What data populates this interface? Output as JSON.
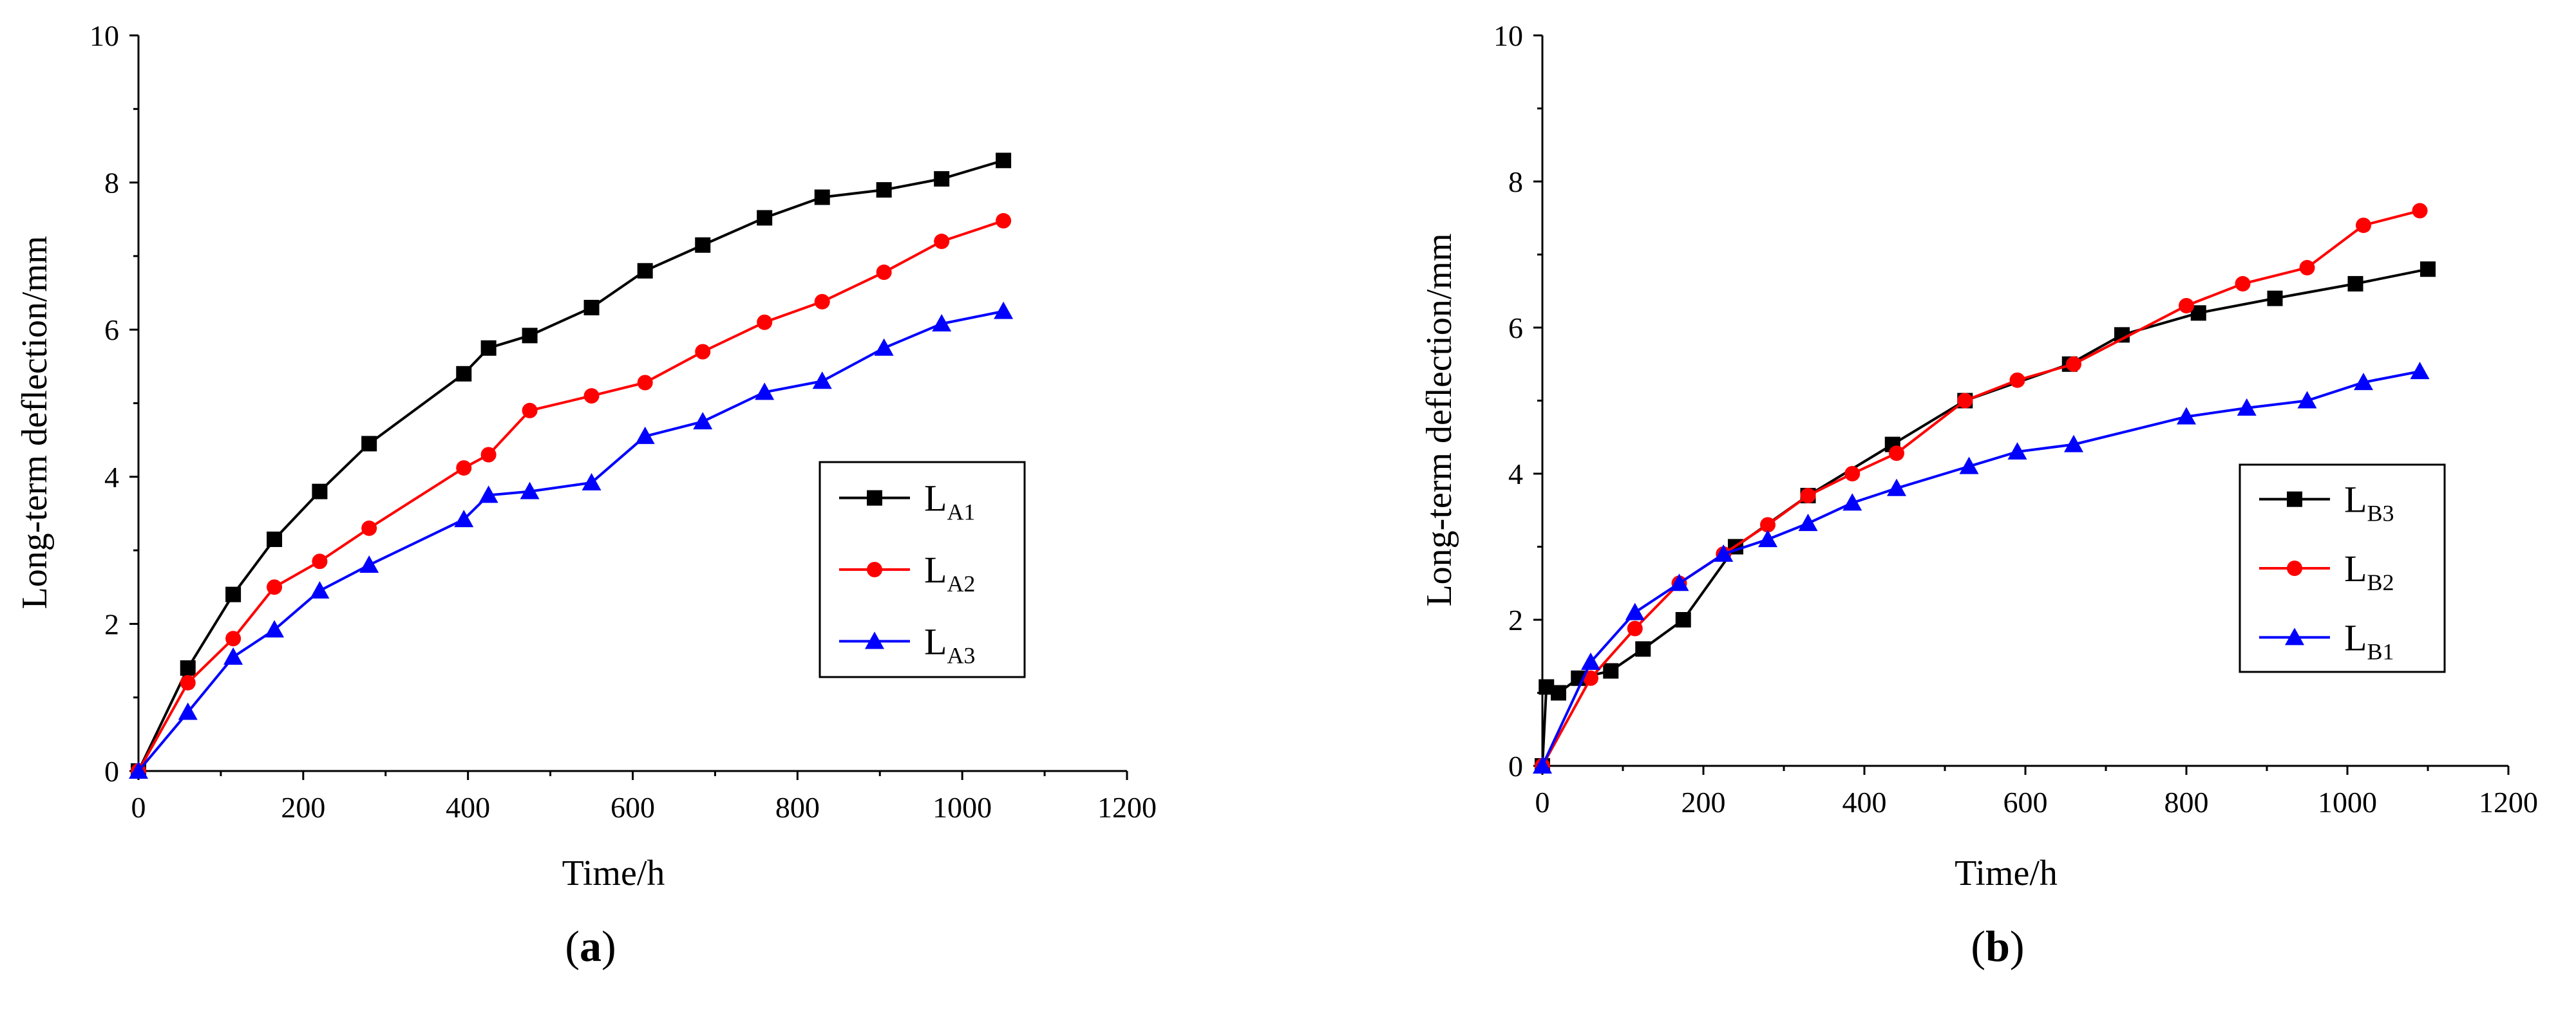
{
  "chart_data": [
    {
      "type": "line",
      "panel_label": "a",
      "xlabel": "Time/h",
      "ylabel": "Long-term deflection/mm",
      "xlim": [
        0,
        1200
      ],
      "ylim": [
        0,
        10
      ],
      "xticks": [
        0,
        200,
        400,
        600,
        800,
        1000,
        1200
      ],
      "yticks": [
        0,
        2,
        4,
        6,
        8,
        10
      ],
      "xtick_labels": [
        "0",
        "200",
        "400",
        "600",
        "800",
        "1000",
        "1200"
      ],
      "ytick_labels": [
        "0",
        "2",
        "4",
        "6",
        "8",
        "10"
      ],
      "legend_placement": "right",
      "series": [
        {
          "name": "LA1",
          "label_main": "L",
          "label_sub": "A1",
          "color": "#000000",
          "marker": "square",
          "x": [
            0,
            60,
            115,
            165,
            220,
            280,
            395,
            425,
            475,
            550,
            615,
            685,
            760,
            830,
            905,
            975,
            1050
          ],
          "y": [
            0,
            1.4,
            2.4,
            3.15,
            3.8,
            4.45,
            5.4,
            5.75,
            5.92,
            6.3,
            6.8,
            7.15,
            7.52,
            7.8,
            7.9,
            8.05,
            8.3
          ]
        },
        {
          "name": "LA2",
          "label_main": "L",
          "label_sub": "A2",
          "color": "#ff0000",
          "marker": "circle",
          "x": [
            0,
            60,
            115,
            165,
            220,
            280,
            395,
            425,
            475,
            550,
            615,
            685,
            760,
            830,
            905,
            975,
            1050
          ],
          "y": [
            0,
            1.2,
            1.8,
            2.5,
            2.85,
            3.3,
            4.12,
            4.3,
            4.9,
            5.1,
            5.28,
            5.7,
            6.1,
            6.38,
            6.78,
            7.2,
            7.48
          ]
        },
        {
          "name": "LA3",
          "label_main": "L",
          "label_sub": "A3",
          "color": "#0000ff",
          "marker": "triangle",
          "x": [
            0,
            60,
            115,
            165,
            220,
            280,
            395,
            425,
            475,
            550,
            615,
            685,
            760,
            830,
            905,
            975,
            1050
          ],
          "y": [
            0,
            0.8,
            1.55,
            1.92,
            2.45,
            2.8,
            3.42,
            3.75,
            3.8,
            3.92,
            4.55,
            4.75,
            5.15,
            5.3,
            5.75,
            6.08,
            6.25
          ]
        }
      ]
    },
    {
      "type": "line",
      "panel_label": "b",
      "xlabel": "Time/h",
      "ylabel": "Long-term deflection/mm",
      "xlim": [
        0,
        1200
      ],
      "ylim": [
        0,
        10
      ],
      "xticks": [
        0,
        200,
        400,
        600,
        800,
        1000,
        1200
      ],
      "yticks": [
        0,
        2,
        4,
        6,
        8,
        10
      ],
      "xtick_labels": [
        "0",
        "200",
        "400",
        "600",
        "800",
        "1000",
        "1200"
      ],
      "ytick_labels": [
        "0",
        "2",
        "4",
        "6",
        "8",
        "10"
      ],
      "legend_placement": "right",
      "series": [
        {
          "name": "LB3",
          "label_main": "L",
          "label_sub": "B3",
          "color": "#000000",
          "marker": "square",
          "x": [
            0,
            5,
            20,
            45,
            85,
            125,
            175,
            240,
            330,
            435,
            525,
            655,
            720,
            815,
            910,
            1010,
            1100
          ],
          "y": [
            0,
            1.08,
            1.0,
            1.2,
            1.3,
            1.6,
            2.0,
            3.0,
            3.7,
            4.4,
            5.0,
            5.5,
            5.9,
            6.2,
            6.4,
            6.6,
            6.8
          ]
        },
        {
          "name": "LB2",
          "label_main": "L",
          "label_sub": "B2",
          "color": "#ff0000",
          "marker": "circle",
          "x": [
            0,
            60,
            115,
            170,
            225,
            280,
            330,
            385,
            440,
            525,
            590,
            660,
            800,
            870,
            950,
            1020,
            1090
          ],
          "y": [
            0,
            1.2,
            1.88,
            2.5,
            2.9,
            3.3,
            3.7,
            4.0,
            4.28,
            5.0,
            5.28,
            5.5,
            6.3,
            6.6,
            6.82,
            7.4,
            7.6
          ]
        },
        {
          "name": "LB1",
          "label_main": "L",
          "label_sub": "B1",
          "color": "#0000ff",
          "marker": "triangle",
          "x": [
            0,
            60,
            115,
            170,
            225,
            280,
            330,
            385,
            440,
            530,
            590,
            660,
            800,
            875,
            950,
            1020,
            1090
          ],
          "y": [
            0,
            1.42,
            2.1,
            2.5,
            2.9,
            3.1,
            3.32,
            3.6,
            3.8,
            4.1,
            4.3,
            4.4,
            4.78,
            4.9,
            5.0,
            5.25,
            5.4
          ]
        }
      ]
    }
  ]
}
